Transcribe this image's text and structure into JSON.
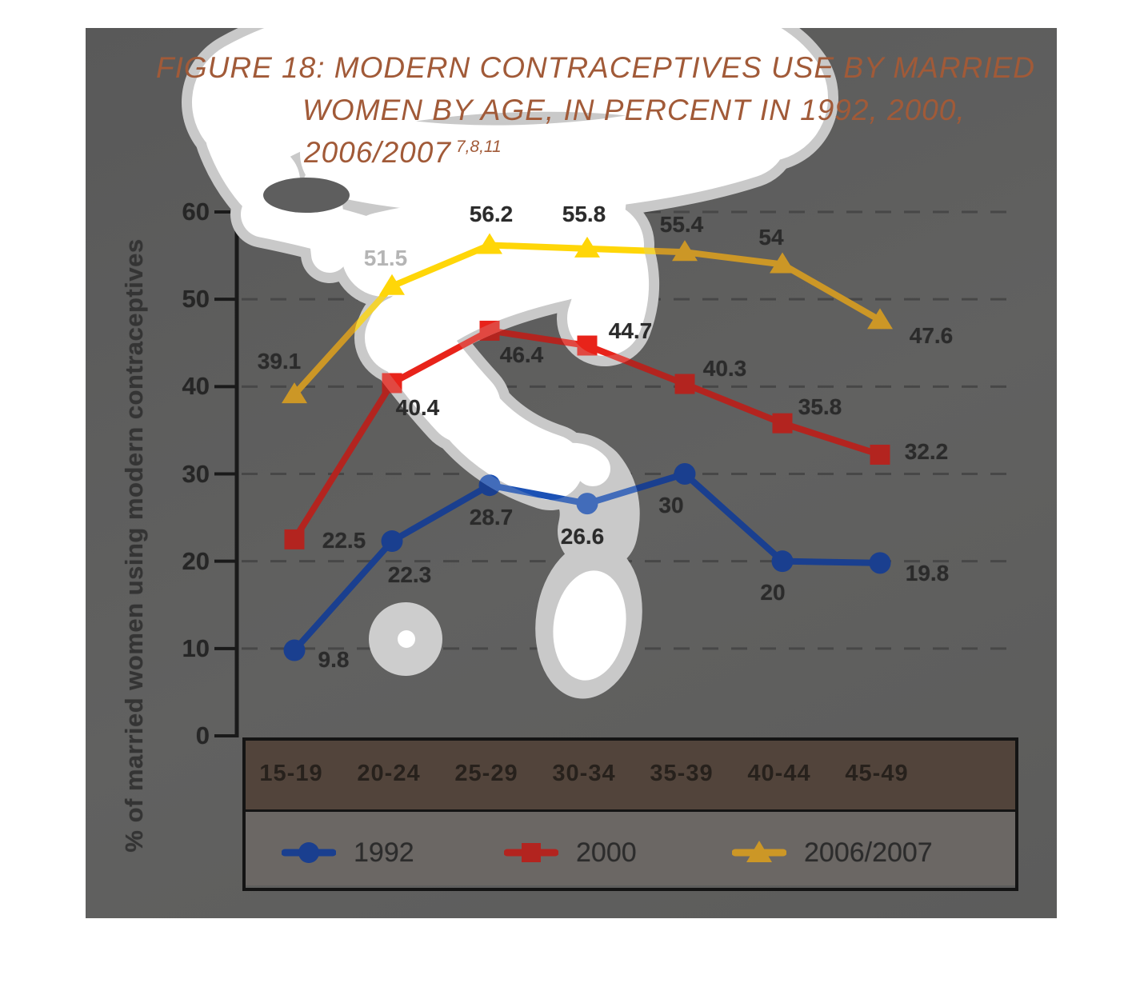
{
  "figure": {
    "title_line1": "FIGURE 18: MODERN CONTRACEPTIVES USE BY MARRIED",
    "title_line2": "WOMEN BY AGE, IN PERCENT IN 1992, 2000,",
    "title_line3": "2006/2007",
    "title_superscript": "7,8,11"
  },
  "chart_data": {
    "type": "line",
    "title": "Modern contraceptives use by married women by age, in percent in 1992, 2000, 2006/2007",
    "categories": [
      "15-19",
      "20-24",
      "25-29",
      "30-34",
      "35-39",
      "40-44",
      "45-49"
    ],
    "series": [
      {
        "name": "1992",
        "marker": "circle",
        "color": "#1a3f8f",
        "color_bright": "#1b51b5",
        "values": [
          9.8,
          22.3,
          28.7,
          26.6,
          30,
          20,
          19.8
        ]
      },
      {
        "name": "2000",
        "marker": "square",
        "color": "#b3241f",
        "color_bright": "#e8231a",
        "values": [
          22.5,
          40.4,
          46.4,
          44.7,
          40.3,
          35.8,
          32.2
        ]
      },
      {
        "name": "2006/2007",
        "marker": "triangle",
        "color": "#cc9726",
        "color_bright": "#ffd608",
        "values": [
          39.1,
          51.5,
          56.2,
          55.8,
          55.4,
          54,
          47.6
        ]
      }
    ],
    "ylabel": "% of married women using modern contraceptives",
    "xlabel": "",
    "yticks": [
      0,
      10,
      20,
      30,
      40,
      50,
      60
    ],
    "ylim": [
      0,
      60
    ],
    "grid": "horizontal-dashed",
    "legend_position": "bottom"
  }
}
